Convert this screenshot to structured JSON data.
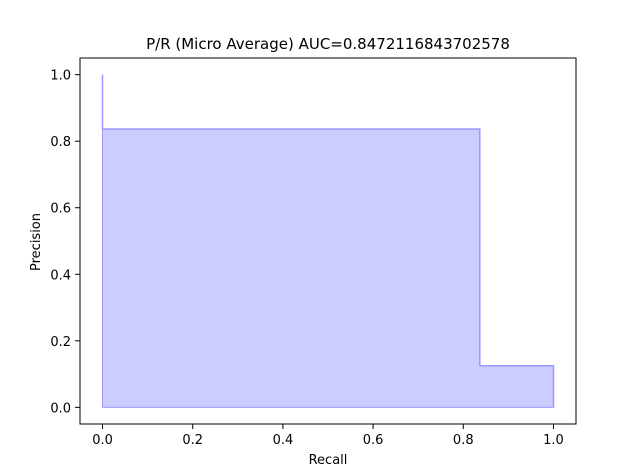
{
  "chart_data": {
    "type": "area",
    "title": "P/R (Micro Average) AUC=0.8472116843702578",
    "xlabel": "Recall",
    "ylabel": "Precision",
    "xlim": [
      -0.05,
      1.05
    ],
    "ylim": [
      -0.05,
      1.05
    ],
    "xticks": [
      "0.0",
      "0.2",
      "0.4",
      "0.6",
      "0.8",
      "1.0"
    ],
    "yticks": [
      "0.0",
      "0.2",
      "0.4",
      "0.6",
      "0.8",
      "1.0"
    ],
    "step_curve": {
      "recall": [
        0.0,
        0.0,
        0.8367,
        0.8367,
        1.0,
        1.0
      ],
      "precision": [
        1.0,
        0.8367,
        0.8367,
        0.125,
        0.125,
        0.0
      ]
    },
    "grid": false,
    "colors": {
      "fill": "#ccccff",
      "line": "#9a9aff"
    }
  }
}
